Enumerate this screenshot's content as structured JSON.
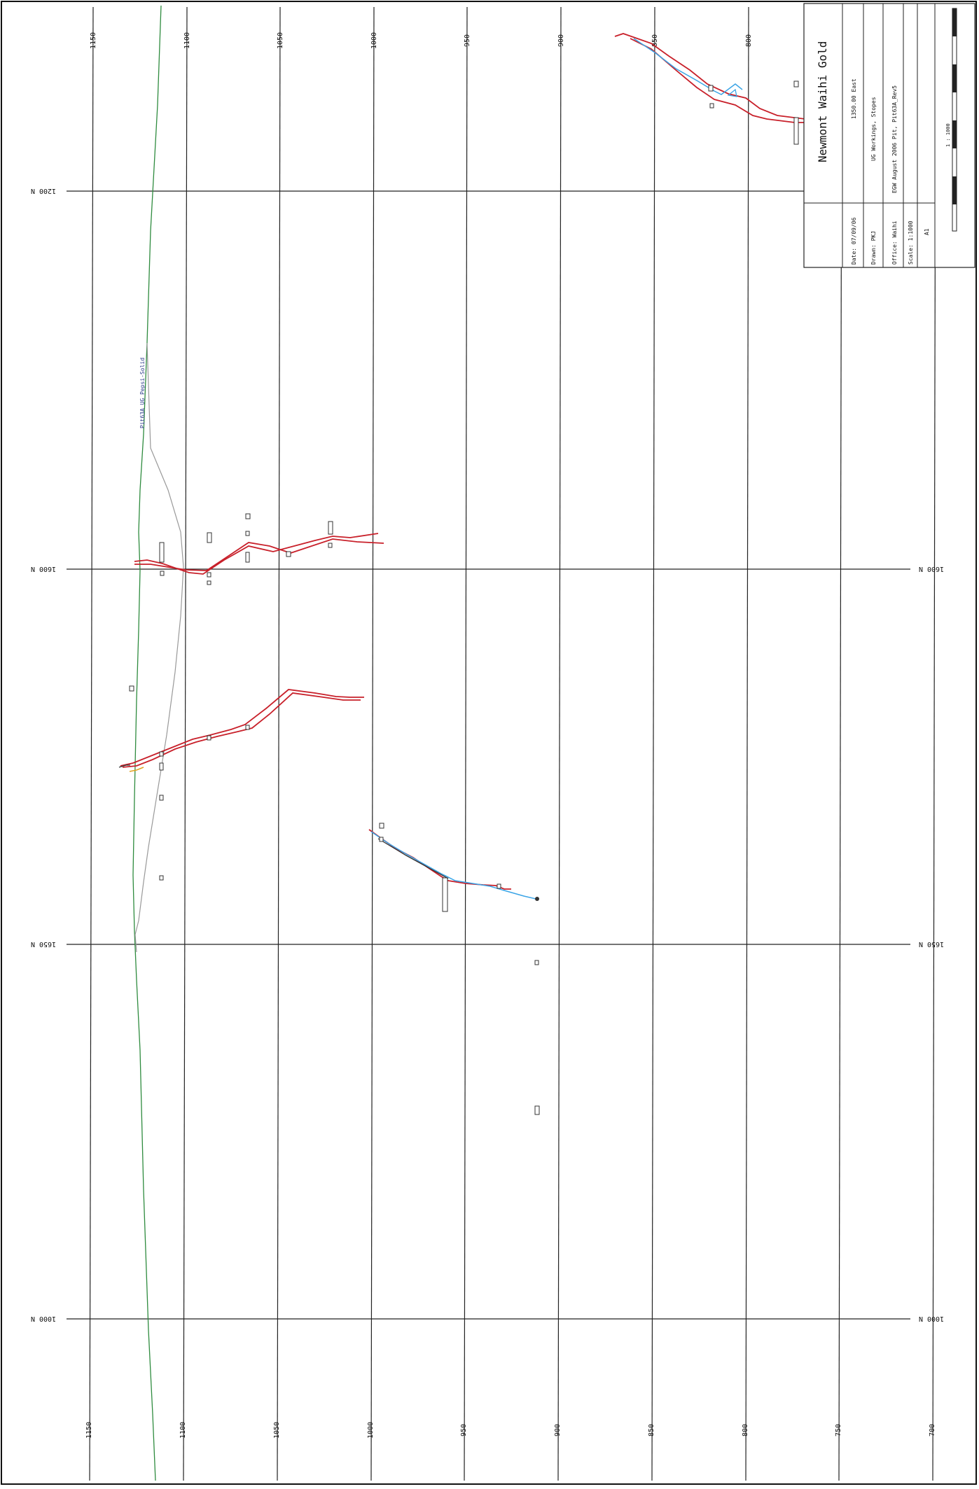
{
  "title_block": {
    "company": "Newmont Waihi Gold",
    "section": "1350.00 East",
    "content": "UG Workings, Stopes",
    "source": "EGW August 2006 Pit, Pit63A_Rev5",
    "date": "Date: 07/09/06",
    "drawn": "Drawn: PKJ",
    "office": "Office: Waihi",
    "scale": "Scale: 1:1000",
    "sheet": "A1",
    "scale_bar_label": "1 : 1000"
  },
  "grid": {
    "x_labels": [
      "1150",
      "1100",
      "1050",
      "1000",
      "950",
      "900",
      "850",
      "800",
      "750",
      "700"
    ],
    "y_labels": [
      "1200 N",
      "1600 N",
      "1650 N",
      "1000 N"
    ]
  },
  "annotation": {
    "pit_outline_label": "Pit63A UG Pepsi-Solid"
  },
  "colors": {
    "stope": "#c8202a",
    "drive": "#3aa4e6",
    "topography": "#2e8b3e",
    "pit_outline": "#999999",
    "dark_line": "#333333",
    "orange": "#e0a020"
  }
}
